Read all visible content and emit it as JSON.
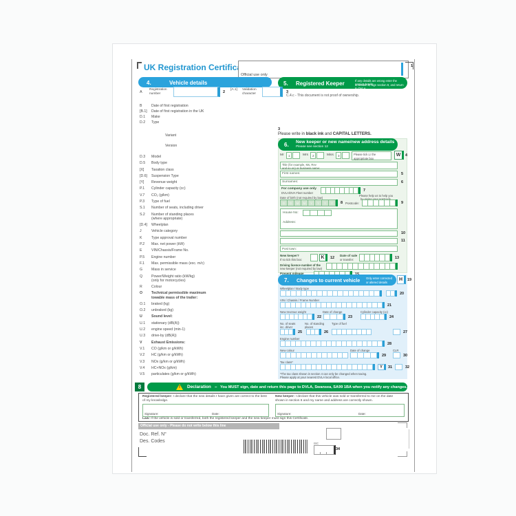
{
  "colors": {
    "blue": "#2ba3dc",
    "green": "#009a49",
    "light_green": "#edf5ec",
    "light_blue": "#e1f0fa",
    "gray_bar": "#b5b5b5"
  },
  "page": {
    "title": "UK Registration Certificate",
    "official_label": "Official use only",
    "corner_marker": "1",
    "prelist_marker": "3",
    "write_note": {
      "pre": "Please write in ",
      "b1": "black ink",
      "mid": " and ",
      "b2": "CAPITAL LETTERS."
    }
  },
  "section4": {
    "number": "4.",
    "title": "Vehicle details",
    "reg": {
      "code": "A",
      "label1": "Registration",
      "label2": "number",
      "marker": "2"
    },
    "val": {
      "code": "[A.1]",
      "label1": "Validation",
      "label2": "character",
      "marker": "3"
    },
    "top_items": [
      {
        "code": "B",
        "label": "Date of first registration"
      },
      {
        "code": "[B.1]",
        "label": "Date of first registration in the UK"
      },
      {
        "code": "D.1",
        "label": "Make"
      },
      {
        "code": "D.2",
        "label": "Type"
      },
      {
        "code": "",
        "label": "Variant"
      },
      {
        "code": "",
        "label": "Version"
      }
    ],
    "items": [
      {
        "code": "D.3",
        "label": "Model"
      },
      {
        "code": "D.5",
        "label": "Body type"
      },
      {
        "code": "[X]",
        "label": "Taxation class"
      },
      {
        "code": "[D.6]",
        "label": "Suspension Type"
      },
      {
        "code": "[Y]",
        "label": "Revenue weight"
      },
      {
        "code": "P.1",
        "label": "Cylinder capacity (cc)"
      },
      {
        "code": "V.7",
        "label": "CO₂ (g/km)"
      },
      {
        "code": "P.3",
        "label": "Type of fuel"
      },
      {
        "code": "S.1",
        "label": "Number of seats, including driver"
      },
      {
        "code": "S.2",
        "label": "Number of standing places",
        "label2": "(where appropriate)"
      },
      {
        "code": "[D.4]",
        "label": "Wheelplan"
      },
      {
        "code": "J",
        "label": "Vehicle category"
      },
      {
        "code": "K",
        "label": "Type approval number"
      },
      {
        "code": "P.2",
        "label": "Max. net power (kW)"
      },
      {
        "code": "E",
        "label": "VIN/Chassis/Frame No."
      },
      {
        "code": "P.5",
        "label": "Engine number"
      },
      {
        "code": "F.1",
        "label": "Max. permissible mass (exc. m/c)"
      },
      {
        "code": "G",
        "label": "Mass in service"
      },
      {
        "code": "Q",
        "label": "Power/Weight ratio (kW/kg)",
        "label2": "(only for motorcycles)"
      },
      {
        "code": "R",
        "label": "Colour"
      },
      {
        "code": "O",
        "label": "Technical permissible maximum",
        "label2": "towable mass of the trailer:",
        "bold": true
      },
      {
        "code": "O.1",
        "label": "braked (kg)"
      },
      {
        "code": "O.2",
        "label": "unbraked (kg)"
      },
      {
        "code": "U",
        "label": "Sound level:",
        "bold": true
      },
      {
        "code": "U.1",
        "label": "stationary (dB(A))"
      },
      {
        "code": "U.2",
        "label": "engine speed (min-1)"
      },
      {
        "code": "U.3",
        "label": "drive-by (dB(A))"
      },
      {
        "code": "V",
        "label": "Exhaust Emissions:",
        "bold": true
      },
      {
        "code": "V.1",
        "label": "CO (g/km or g/kWh)"
      },
      {
        "code": "V.2",
        "label": "HC (g/km or g/kWh)"
      },
      {
        "code": "V.3",
        "label": "NOx (g/km or g/kWh)"
      },
      {
        "code": "V.4",
        "label": "HC+NOx (g/km)"
      },
      {
        "code": "V.5",
        "label": "particulates (g/km or g/kWh)"
      }
    ]
  },
  "section5": {
    "number": "5.",
    "title": "Registered Keeper",
    "note1": "If any details are wrong enter the correct details",
    "note2": "in section 6, sign section 8, and return to DVLA.",
    "ownership_note": "C.4.c - This document is not proof of ownership."
  },
  "section6": {
    "number": "6.",
    "title": "New keeper or new name/new address details",
    "subtitle": "Please see section 12",
    "titles": {
      "mr": "Mr",
      "mr_num": "1",
      "mrs": "Mrs",
      "mrs_num": "2",
      "miss": "Miss",
      "miss_num": "3",
      "tick1": "Please tick ☑ the",
      "tick2": "appropriate box",
      "w": "W",
      "marker": "4"
    },
    "title_field1": "Title (for example, Ms, Rev",
    "title_field2": "and so on) or business name:",
    "first_names": "First names:",
    "m5": "5",
    "surnames": "Surnames:",
    "m6": "6",
    "company_b": "For company use only",
    "company": "DVLA/DVA Fleet number",
    "m7": "7",
    "dob": "Date of birth (not required by law)",
    "dob_chars": "DDMMYYYY",
    "m8": "8",
    "postcode": "Postcode:",
    "postcode_note1": "Please help us to help you",
    "postcode_note2": "by giving your postcode.",
    "m9": "9",
    "house_no": "House No:",
    "address": "Address:",
    "m10": "10",
    "m11": "11",
    "post_town": "Post town:",
    "nk1": "New keeper?",
    "nk2": "If so tick this box:",
    "k": "K",
    "m12": "12",
    "dos1": "Date of sale",
    "dos2": "or transfer:",
    "m13": "13",
    "lic1": "Driving licence number of the",
    "lic2": "new keeper (not required by law)",
    "mil1": "Present mileage",
    "mil2": "(not required by law)",
    "m15": "15",
    "r": "R",
    "m16": "16",
    "s": "S",
    "m17": "17"
  },
  "section7": {
    "number": "7.",
    "title": "Changes to current vehicle",
    "note1": "Only enter corrected",
    "note2": "or altered details",
    "h": "H",
    "m19": "19",
    "wheelplan": "Wheelplan / Body type",
    "m20": "20",
    "vin": "VIN / Chassis / Frame Number",
    "m21": "21",
    "revenue": "New revenue weight",
    "m22": "22",
    "date_change": "Date of change",
    "m23": "23",
    "cylinder": "Cylinder capacity (cc)",
    "m24": "24",
    "seats1": "No. of seats",
    "seats2": "inc. driver",
    "m25": "25",
    "stand1": "No. of standing",
    "stand2": "places",
    "m26": "26",
    "fuel": "Type of fuel",
    "m27": "27",
    "engine": "Engine number",
    "m28": "28",
    "colour": "New colour",
    "date_change2": "Date of change",
    "m29": "29",
    "clr": "CLR",
    "m30": "30",
    "tax": "Tax class*",
    "y": "Y",
    "m31": "31",
    "m32": "32",
    "foot1": "*The tax class shown in section 4 can only be changed when taxing.",
    "foot2": "Please apply at your nearest DVLA local office."
  },
  "section8": {
    "number": "8",
    "title_b": "Declaration",
    "dash": "–",
    "title": "You MUST sign, date and return this page to DVLA, Swansea, SA99 1BA when you notify any changes.",
    "left_b": "Registered keeper:",
    "left": " I declare that the new details I have given are correct to the best of my knowledge.",
    "right_b": "New keeper:",
    "right": " I declare that this vehicle was sold or transferred to me on the date shown in section 6 and my name and address are correctly shown.",
    "signature": "Signature:",
    "date": "Date:",
    "law_b": "Law:",
    "law": " If the vehicle is sold or transferred, both the registered keeper and the new keeper must sign this Certificate."
  },
  "footer": {
    "official_bar": "Official use only - Please do not write below this line",
    "doc_ref": "Doc. Ref. N°",
    "des_codes": "Des. Codes",
    "isc": "ISC",
    "m34": "34"
  }
}
